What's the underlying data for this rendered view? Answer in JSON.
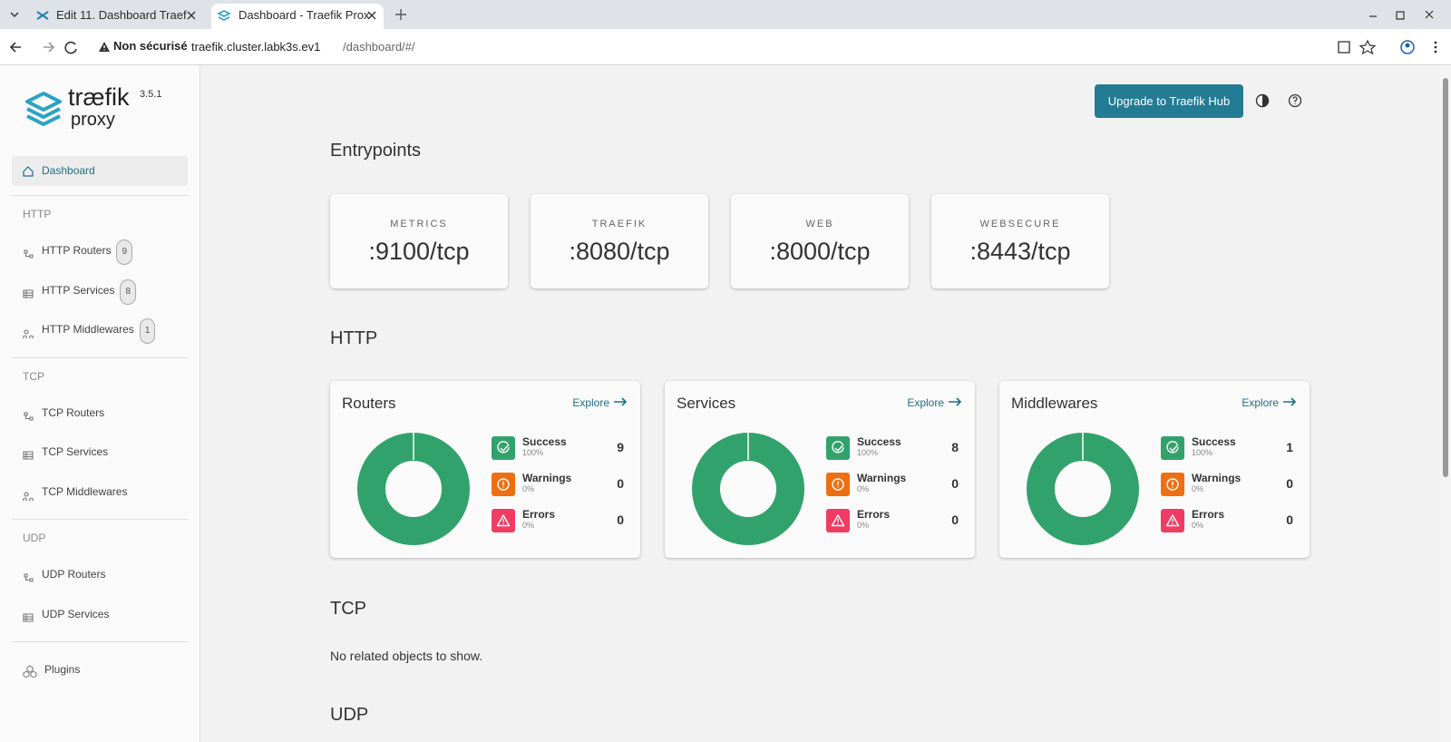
{
  "browser": {
    "tabs": [
      "Edit 11. Dashboard Traef",
      "Dashboard - Traefik Prox"
    ],
    "security": "Non sécurisé",
    "url_host": "traefik.cluster.labk3s.ev1",
    "url_path": "/dashboard/#/"
  },
  "sidebar": {
    "logo": "træfik",
    "logo_sub": "proxy",
    "version": "3.5.1",
    "dashboard": "Dashboard",
    "sections": [
      {
        "title": "HTTP",
        "items": [
          {
            "label": "HTTP Routers",
            "count": 9
          },
          {
            "label": "HTTP Services",
            "count": 8
          },
          {
            "label": "HTTP Middlewares",
            "count": 1
          }
        ]
      },
      {
        "title": "TCP",
        "items": [
          {
            "label": "TCP Routers"
          },
          {
            "label": "TCP Services"
          },
          {
            "label": "TCP Middlewares"
          }
        ]
      },
      {
        "title": "UDP",
        "items": [
          {
            "label": "UDP Routers"
          },
          {
            "label": "UDP Services"
          }
        ]
      }
    ],
    "plugins": "Plugins"
  },
  "header": {
    "upgrade_button": "Upgrade to Traefik Hub"
  },
  "entrypoints": {
    "title": "Entrypoints",
    "items": [
      {
        "name": "METRICS",
        "address": ":9100/tcp"
      },
      {
        "name": "TRAEFIK",
        "address": ":8080/tcp"
      },
      {
        "name": "WEB",
        "address": ":8000/tcp"
      },
      {
        "name": "WEBSECURE",
        "address": ":8443/tcp"
      }
    ]
  },
  "http": {
    "title": "HTTP",
    "cards": [
      {
        "title": "Routers",
        "explore": "Explore",
        "stats": [
          {
            "label": "Success",
            "percent": "100%",
            "count": 9,
            "color": "#32a26c"
          },
          {
            "label": "Warnings",
            "percent": "0%",
            "count": 0,
            "color": "#ee6f12"
          },
          {
            "label": "Errors",
            "percent": "0%",
            "count": 0,
            "color": "#f03c62"
          }
        ]
      },
      {
        "title": "Services",
        "explore": "Explore",
        "stats": [
          {
            "label": "Success",
            "percent": "100%",
            "count": 8,
            "color": "#32a26c"
          },
          {
            "label": "Warnings",
            "percent": "0%",
            "count": 0,
            "color": "#ee6f12"
          },
          {
            "label": "Errors",
            "percent": "0%",
            "count": 0,
            "color": "#f03c62"
          }
        ]
      },
      {
        "title": "Middlewares",
        "explore": "Explore",
        "stats": [
          {
            "label": "Success",
            "percent": "100%",
            "count": 1,
            "color": "#32a26c"
          },
          {
            "label": "Warnings",
            "percent": "0%",
            "count": 0,
            "color": "#ee6f12"
          },
          {
            "label": "Errors",
            "percent": "0%",
            "count": 0,
            "color": "#f03c62"
          }
        ]
      }
    ]
  },
  "tcp": {
    "title": "TCP",
    "message": "No related objects to show."
  },
  "udp": {
    "title": "UDP"
  }
}
